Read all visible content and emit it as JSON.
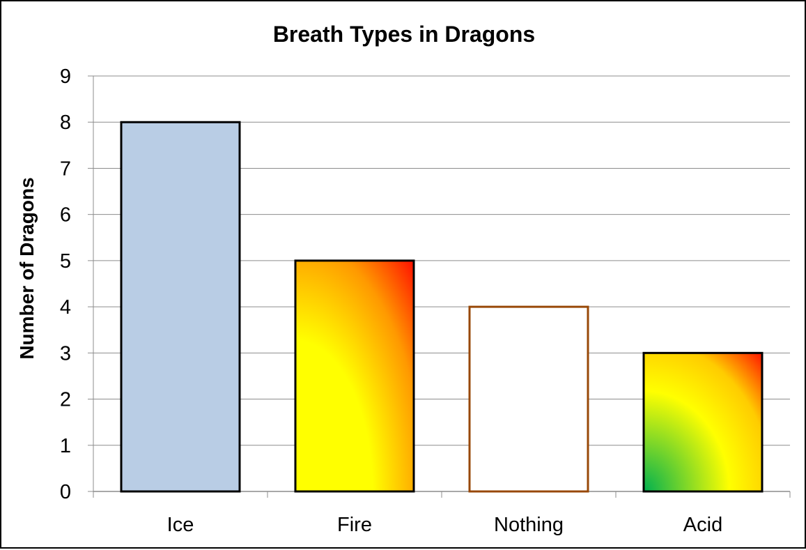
{
  "chart_data": {
    "type": "bar",
    "title": "Breath Types in Dragons",
    "xlabel": "",
    "ylabel": "Number of Dragons",
    "categories": [
      "Ice",
      "Fire",
      "Nothing",
      "Acid"
    ],
    "values": [
      8,
      5,
      4,
      3
    ],
    "ylim": [
      0,
      9
    ],
    "yticks": [
      0,
      1,
      2,
      3,
      4,
      5,
      6,
      7,
      8,
      9
    ],
    "grid": true,
    "legend": "none",
    "bar_styles": [
      {
        "fill": "solid",
        "colors": [
          "#b9cde5"
        ],
        "outline": "#000000"
      },
      {
        "fill": "gradient",
        "colors": [
          "#ffff00",
          "#ff9900",
          "#ff0000"
        ],
        "outline": "#000000"
      },
      {
        "fill": "none",
        "colors": [
          "#ffffff"
        ],
        "outline": "#984807"
      },
      {
        "fill": "gradient",
        "colors": [
          "#00b050",
          "#ffff00",
          "#ff0000"
        ],
        "outline": "#000000"
      }
    ]
  }
}
